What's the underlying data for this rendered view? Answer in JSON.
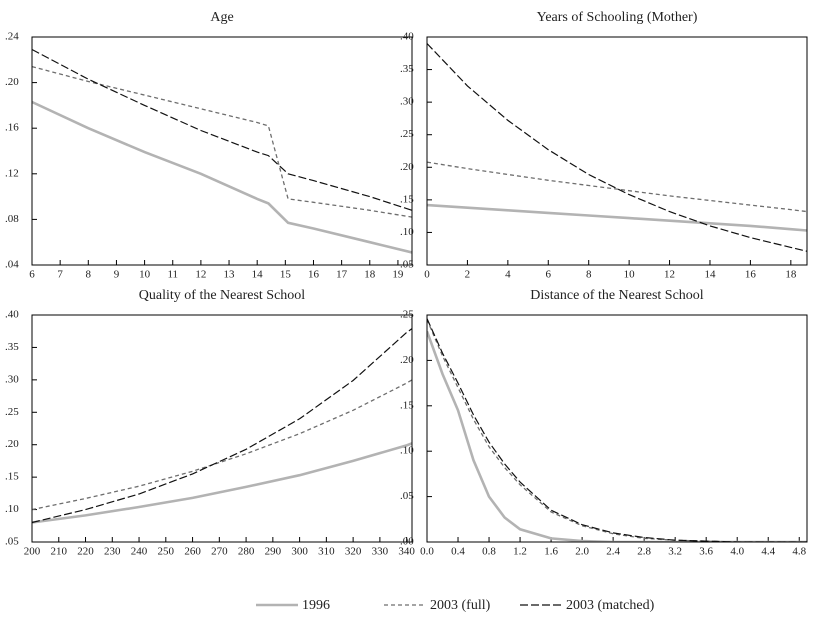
{
  "chart_data": [
    {
      "type": "line",
      "title": "Age",
      "x": [
        6,
        8,
        10,
        12,
        14,
        14.4,
        15.1,
        16,
        18,
        19.5
      ],
      "xlim": [
        6,
        19.5
      ],
      "xticks": [
        6,
        7,
        8,
        9,
        10,
        11,
        12,
        13,
        14,
        15,
        16,
        17,
        18,
        19
      ],
      "ylim": [
        0.04,
        0.24
      ],
      "yticks": [
        {
          "value": 0.04,
          "label": ".04"
        },
        {
          "value": 0.08,
          "label": ".08"
        },
        {
          "value": 0.12,
          "label": ".12"
        },
        {
          "value": 0.16,
          "label": ".16"
        },
        {
          "value": 0.2,
          "label": ".20"
        },
        {
          "value": 0.24,
          "label": ".24"
        }
      ],
      "series": [
        {
          "name": "1996",
          "color": "#b3b3b3",
          "linestyle": "solid",
          "values": [
            0.183,
            0.16,
            0.139,
            0.12,
            0.098,
            0.094,
            0.077,
            0.072,
            0.06,
            0.051
          ]
        },
        {
          "name": "2003 (full)",
          "color": "#6e6e6e",
          "linestyle": "dashed",
          "values": [
            0.214,
            0.201,
            0.189,
            0.177,
            0.165,
            0.162,
            0.098,
            0.095,
            0.088,
            0.082
          ]
        },
        {
          "name": "2003 (matched)",
          "color": "#111111",
          "linestyle": "longdash",
          "values": [
            0.229,
            0.203,
            0.18,
            0.158,
            0.139,
            0.136,
            0.12,
            0.114,
            0.1,
            0.088
          ]
        }
      ]
    },
    {
      "type": "line",
      "title": "Years of Schooling (Mother)",
      "x": [
        0,
        2,
        4,
        6,
        8,
        10,
        12,
        14,
        16,
        18,
        18.8
      ],
      "xlim": [
        0,
        18.8
      ],
      "xticks": [
        0,
        2,
        4,
        6,
        8,
        10,
        12,
        14,
        16,
        18
      ],
      "ylim": [
        0.05,
        0.4
      ],
      "yticks": [
        {
          "value": 0.05,
          "label": ".05"
        },
        {
          "value": 0.1,
          "label": ".10"
        },
        {
          "value": 0.15,
          "label": ".15"
        },
        {
          "value": 0.2,
          "label": ".20"
        },
        {
          "value": 0.25,
          "label": ".25"
        },
        {
          "value": 0.3,
          "label": ".30"
        },
        {
          "value": 0.35,
          "label": ".35"
        },
        {
          "value": 0.4,
          "label": ".40"
        }
      ],
      "series": [
        {
          "name": "1996",
          "color": "#b3b3b3",
          "linestyle": "solid",
          "values": [
            0.142,
            0.138,
            0.134,
            0.13,
            0.126,
            0.122,
            0.118,
            0.114,
            0.11,
            0.105,
            0.103
          ]
        },
        {
          "name": "2003 (full)",
          "color": "#6e6e6e",
          "linestyle": "dashed",
          "values": [
            0.208,
            0.198,
            0.189,
            0.18,
            0.172,
            0.164,
            0.156,
            0.149,
            0.142,
            0.135,
            0.132
          ]
        },
        {
          "name": "2003 (matched)",
          "color": "#111111",
          "linestyle": "longdash",
          "values": [
            0.39,
            0.325,
            0.272,
            0.227,
            0.189,
            0.158,
            0.132,
            0.11,
            0.092,
            0.077,
            0.071
          ]
        }
      ]
    },
    {
      "type": "line",
      "title": "Quality of the Nearest School",
      "x": [
        200,
        220,
        240,
        260,
        280,
        300,
        320,
        340,
        342
      ],
      "xlim": [
        200,
        342
      ],
      "xticks": [
        200,
        210,
        220,
        230,
        240,
        250,
        260,
        270,
        280,
        290,
        300,
        310,
        320,
        330,
        340
      ],
      "ylim": [
        0.05,
        0.4
      ],
      "yticks": [
        {
          "value": 0.05,
          "label": ".05"
        },
        {
          "value": 0.1,
          "label": ".10"
        },
        {
          "value": 0.15,
          "label": ".15"
        },
        {
          "value": 0.2,
          "label": ".20"
        },
        {
          "value": 0.25,
          "label": ".25"
        },
        {
          "value": 0.3,
          "label": ".30"
        },
        {
          "value": 0.35,
          "label": ".35"
        },
        {
          "value": 0.4,
          "label": ".40"
        }
      ],
      "series": [
        {
          "name": "1996",
          "color": "#b3b3b3",
          "linestyle": "solid",
          "values": [
            0.08,
            0.091,
            0.104,
            0.118,
            0.135,
            0.153,
            0.175,
            0.199,
            0.202
          ]
        },
        {
          "name": "2003 (full)",
          "color": "#6e6e6e",
          "linestyle": "dashed",
          "values": [
            0.1,
            0.117,
            0.136,
            0.159,
            0.186,
            0.217,
            0.253,
            0.295,
            0.3
          ]
        },
        {
          "name": "2003 (matched)",
          "color": "#111111",
          "linestyle": "longdash",
          "values": [
            0.08,
            0.1,
            0.124,
            0.155,
            0.193,
            0.24,
            0.299,
            0.373,
            0.379
          ]
        }
      ]
    },
    {
      "type": "line",
      "title": "Distance of the Nearest School",
      "x": [
        0,
        0.2,
        0.4,
        0.6,
        0.8,
        1.0,
        1.2,
        1.6,
        2.0,
        2.4,
        2.8,
        3.2,
        3.6,
        4.0,
        4.9
      ],
      "xlim": [
        0,
        4.9
      ],
      "xticks": [
        {
          "value": 0,
          "label": "0.0"
        },
        0.4,
        0.8,
        1.2,
        1.6,
        {
          "value": 2,
          "label": "2.0"
        },
        2.4,
        2.8,
        3.2,
        3.6,
        {
          "value": 4,
          "label": "4.0"
        },
        4.4,
        4.8
      ],
      "ylim": [
        0,
        0.25
      ],
      "yticks": [
        {
          "value": 0,
          "label": ".00"
        },
        {
          "value": 0.05,
          "label": ".05"
        },
        {
          "value": 0.1,
          "label": ".10"
        },
        {
          "value": 0.15,
          "label": ".15"
        },
        {
          "value": 0.2,
          "label": ".20"
        },
        {
          "value": 0.25,
          "label": ".25"
        }
      ],
      "series": [
        {
          "name": "1996",
          "color": "#b3b3b3",
          "linestyle": "solid",
          "values": [
            0.232,
            0.185,
            0.145,
            0.09,
            0.05,
            0.027,
            0.014,
            0.004,
            0.001,
            0,
            0,
            0,
            0,
            0,
            0
          ]
        },
        {
          "name": "2003 (full)",
          "color": "#6e6e6e",
          "linestyle": "dashed",
          "values": [
            0.245,
            0.205,
            0.17,
            0.135,
            0.105,
            0.082,
            0.063,
            0.033,
            0.018,
            0.009,
            0.004,
            0.002,
            0.001,
            0,
            0
          ]
        },
        {
          "name": "2003 (matched)",
          "color": "#111111",
          "linestyle": "longdash",
          "values": [
            0.246,
            0.208,
            0.175,
            0.14,
            0.11,
            0.086,
            0.066,
            0.035,
            0.019,
            0.01,
            0.005,
            0.002,
            0.001,
            0,
            0
          ]
        }
      ]
    }
  ]
}
